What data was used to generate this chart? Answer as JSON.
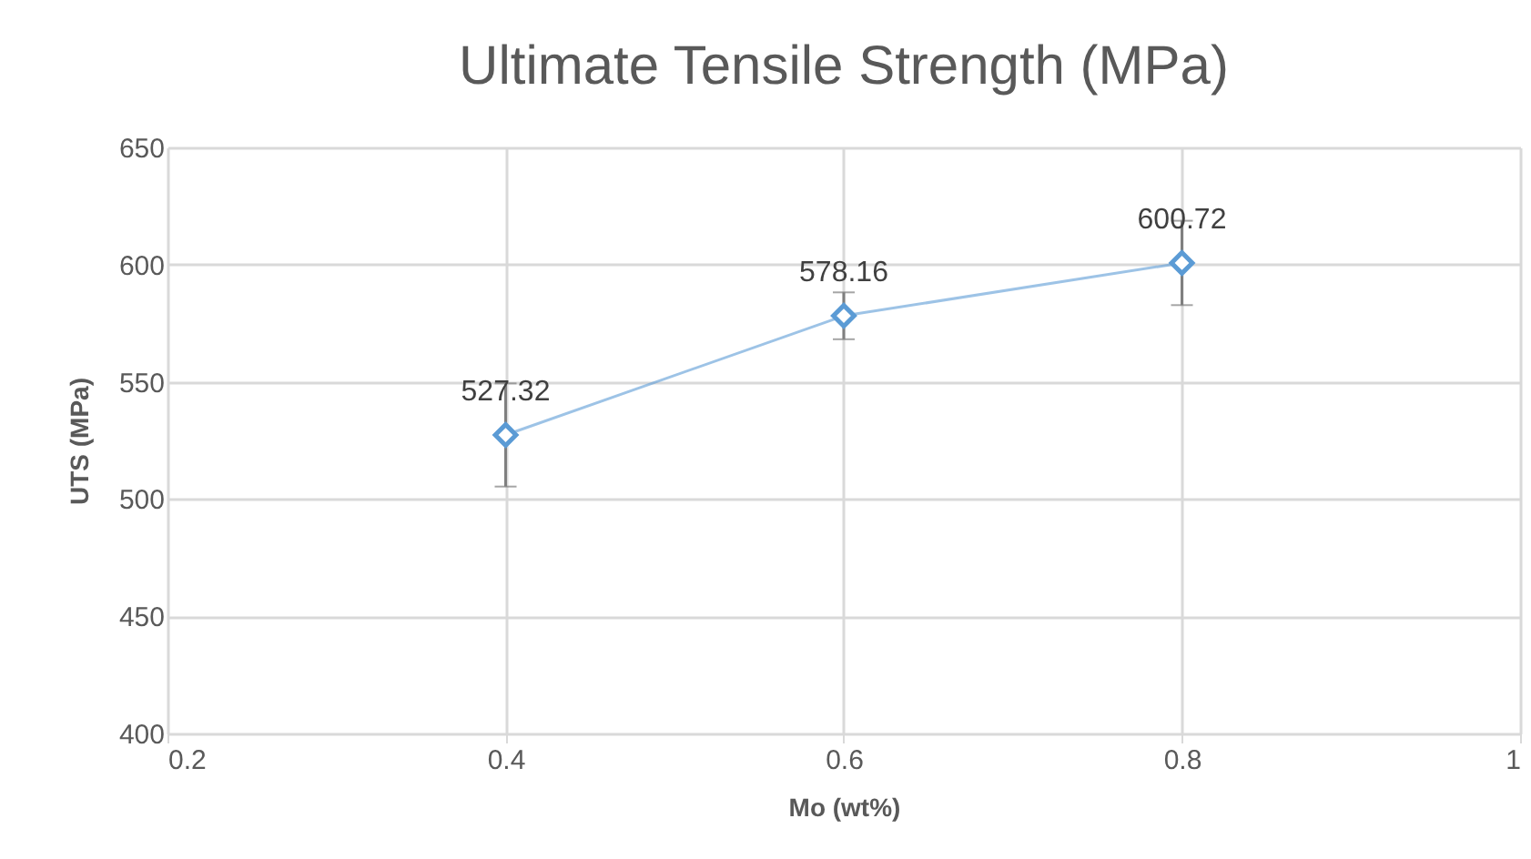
{
  "chart_data": {
    "type": "line",
    "title": "Ultimate Tensile Strength (MPa)",
    "xlabel": "Mo (wt%)",
    "ylabel": "UTS (MPa)",
    "x": [
      0.4,
      0.6,
      0.8
    ],
    "series": [
      {
        "color": "#5b9bd5",
        "values": [
          527.32,
          578.16,
          600.72
        ],
        "errors": [
          22,
          10,
          18
        ]
      }
    ],
    "xlim": [
      0.2,
      1
    ],
    "xticks": [
      0.2,
      0.4,
      0.6,
      0.8,
      1
    ],
    "ylim": [
      400,
      650
    ],
    "yticks": [
      400,
      450,
      500,
      550,
      600,
      650
    ],
    "grid": true,
    "marker": "diamond",
    "data_labels": true
  }
}
